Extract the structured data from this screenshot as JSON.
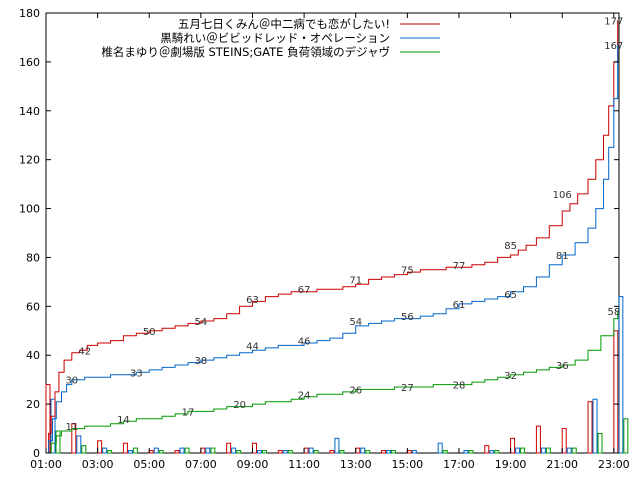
{
  "chart_data": {
    "type": "line",
    "x_label": "",
    "y_label": "",
    "y_ticks": [
      0,
      20,
      40,
      60,
      80,
      100,
      120,
      140,
      160,
      180
    ],
    "x_ticks": [
      "01:00",
      "03:00",
      "05:00",
      "07:00",
      "09:00",
      "11:00",
      "13:00",
      "15:00",
      "17:00",
      "19:00",
      "21:00",
      "23:00"
    ],
    "x_range_hours": [
      1,
      23.2
    ],
    "y_range": [
      0,
      180
    ],
    "grid": false,
    "legend_position": "top-right",
    "series": [
      {
        "name": "五月七日くみん＠中二病でも恋がしたい!",
        "color": "#cc0000",
        "cumulative": [
          [
            1.0,
            0
          ],
          [
            1.1,
            8
          ],
          [
            1.2,
            15
          ],
          [
            1.35,
            25
          ],
          [
            1.5,
            33
          ],
          [
            1.7,
            38
          ],
          [
            2.0,
            41
          ],
          [
            2.3,
            42
          ],
          [
            2.6,
            44
          ],
          [
            3.0,
            45
          ],
          [
            3.5,
            46
          ],
          [
            4.0,
            48
          ],
          [
            4.5,
            49
          ],
          [
            5.0,
            50
          ],
          [
            5.5,
            51
          ],
          [
            6.0,
            52
          ],
          [
            6.5,
            53
          ],
          [
            7.0,
            54
          ],
          [
            7.5,
            55
          ],
          [
            8.0,
            57
          ],
          [
            8.5,
            60
          ],
          [
            9.0,
            62
          ],
          [
            9.5,
            64
          ],
          [
            10.0,
            65
          ],
          [
            10.5,
            66
          ],
          [
            11.0,
            66
          ],
          [
            11.5,
            67
          ],
          [
            12.0,
            67
          ],
          [
            12.5,
            68
          ],
          [
            13.0,
            69
          ],
          [
            13.5,
            71
          ],
          [
            14.0,
            72
          ],
          [
            14.5,
            73
          ],
          [
            15.0,
            74
          ],
          [
            15.5,
            75
          ],
          [
            16.0,
            75
          ],
          [
            16.5,
            76
          ],
          [
            17.0,
            76
          ],
          [
            17.5,
            77
          ],
          [
            18.0,
            78
          ],
          [
            18.5,
            80
          ],
          [
            19.0,
            81
          ],
          [
            19.3,
            83
          ],
          [
            19.6,
            85
          ],
          [
            20.0,
            88
          ],
          [
            20.5,
            93
          ],
          [
            21.0,
            99
          ],
          [
            21.3,
            102
          ],
          [
            21.6,
            106
          ],
          [
            22.0,
            112
          ],
          [
            22.3,
            120
          ],
          [
            22.6,
            130
          ],
          [
            22.8,
            142
          ],
          [
            23.0,
            160
          ],
          [
            23.15,
            177
          ]
        ],
        "point_labels": [
          [
            2.5,
            42
          ],
          [
            5.0,
            50
          ],
          [
            7.0,
            54
          ],
          [
            9.0,
            63
          ],
          [
            11.0,
            67
          ],
          [
            13.0,
            71
          ],
          [
            15.0,
            75
          ],
          [
            17.0,
            77
          ],
          [
            19.0,
            85
          ],
          [
            21.0,
            106
          ],
          [
            23.0,
            177
          ]
        ],
        "hourly": [
          [
            1.0,
            28
          ],
          [
            2.0,
            12
          ],
          [
            3.0,
            5
          ],
          [
            4.0,
            4
          ],
          [
            5.0,
            1
          ],
          [
            6.0,
            1
          ],
          [
            7.0,
            2
          ],
          [
            8.0,
            4
          ],
          [
            9.0,
            4
          ],
          [
            10.0,
            1
          ],
          [
            11.0,
            2
          ],
          [
            12.0,
            1
          ],
          [
            13.0,
            2
          ],
          [
            14.0,
            1
          ],
          [
            15.0,
            1
          ],
          [
            16.0,
            0
          ],
          [
            17.0,
            0
          ],
          [
            18.0,
            3
          ],
          [
            19.0,
            6
          ],
          [
            20.0,
            11
          ],
          [
            21.0,
            10
          ],
          [
            22.0,
            21
          ],
          [
            23.0,
            50
          ]
        ]
      },
      {
        "name": "黒騎れい＠ビビッドレッド・オペレーション",
        "color": "#0066cc",
        "cumulative": [
          [
            1.0,
            0
          ],
          [
            1.1,
            5
          ],
          [
            1.25,
            14
          ],
          [
            1.4,
            21
          ],
          [
            1.6,
            25
          ],
          [
            1.8,
            28
          ],
          [
            2.0,
            30
          ],
          [
            2.5,
            31
          ],
          [
            3.0,
            31
          ],
          [
            3.5,
            32
          ],
          [
            4.0,
            32
          ],
          [
            4.5,
            33
          ],
          [
            5.0,
            34
          ],
          [
            5.5,
            35
          ],
          [
            6.0,
            36
          ],
          [
            6.5,
            37
          ],
          [
            7.0,
            38
          ],
          [
            7.5,
            39
          ],
          [
            8.0,
            40
          ],
          [
            8.5,
            41
          ],
          [
            9.0,
            42
          ],
          [
            9.5,
            43
          ],
          [
            10.0,
            44
          ],
          [
            10.5,
            44
          ],
          [
            11.0,
            45
          ],
          [
            11.5,
            46
          ],
          [
            12.0,
            47
          ],
          [
            12.5,
            49
          ],
          [
            13.0,
            52
          ],
          [
            13.5,
            53
          ],
          [
            14.0,
            54
          ],
          [
            14.5,
            55
          ],
          [
            15.0,
            55
          ],
          [
            15.5,
            56
          ],
          [
            16.0,
            57
          ],
          [
            16.5,
            59
          ],
          [
            17.0,
            61
          ],
          [
            17.5,
            62
          ],
          [
            18.0,
            63
          ],
          [
            18.5,
            64
          ],
          [
            19.0,
            66
          ],
          [
            19.5,
            68
          ],
          [
            20.0,
            72
          ],
          [
            20.5,
            77
          ],
          [
            21.0,
            81
          ],
          [
            21.5,
            86
          ],
          [
            22.0,
            92
          ],
          [
            22.3,
            100
          ],
          [
            22.6,
            112
          ],
          [
            22.8,
            125
          ],
          [
            23.0,
            145
          ],
          [
            23.15,
            167
          ]
        ],
        "point_labels": [
          [
            2.0,
            30
          ],
          [
            4.5,
            33
          ],
          [
            7.0,
            38
          ],
          [
            9.0,
            44
          ],
          [
            11.0,
            46
          ],
          [
            13.0,
            54
          ],
          [
            15.0,
            56
          ],
          [
            17.0,
            61
          ],
          [
            19.0,
            65
          ],
          [
            21.0,
            81
          ],
          [
            23.0,
            167
          ]
        ],
        "hourly": [
          [
            1.0,
            22
          ],
          [
            2.0,
            7
          ],
          [
            3.0,
            2
          ],
          [
            4.0,
            1
          ],
          [
            5.0,
            2
          ],
          [
            6.0,
            2
          ],
          [
            7.0,
            2
          ],
          [
            8.0,
            2
          ],
          [
            9.0,
            1
          ],
          [
            10.0,
            1
          ],
          [
            11.0,
            2
          ],
          [
            12.0,
            6
          ],
          [
            13.0,
            2
          ],
          [
            14.0,
            1
          ],
          [
            15.0,
            1
          ],
          [
            16.0,
            4
          ],
          [
            17.0,
            1
          ],
          [
            18.0,
            1
          ],
          [
            19.0,
            2
          ],
          [
            20.0,
            2
          ],
          [
            21.0,
            2
          ],
          [
            22.0,
            22
          ],
          [
            23.0,
            64
          ]
        ]
      },
      {
        "name": "椎名まゆり＠劇場版 STEINS;GATE 負荷領域のデジャヴ",
        "color": "#009900",
        "cumulative": [
          [
            1.0,
            0
          ],
          [
            1.2,
            4
          ],
          [
            1.4,
            7
          ],
          [
            1.6,
            9
          ],
          [
            2.0,
            10
          ],
          [
            2.5,
            11
          ],
          [
            3.0,
            11
          ],
          [
            3.5,
            12
          ],
          [
            4.0,
            13
          ],
          [
            4.5,
            14
          ],
          [
            5.0,
            14
          ],
          [
            5.5,
            15
          ],
          [
            6.0,
            16
          ],
          [
            6.5,
            17
          ],
          [
            7.0,
            17
          ],
          [
            7.5,
            18
          ],
          [
            8.0,
            19
          ],
          [
            8.5,
            19
          ],
          [
            9.0,
            20
          ],
          [
            9.5,
            21
          ],
          [
            10.0,
            21
          ],
          [
            10.5,
            22
          ],
          [
            11.0,
            23
          ],
          [
            11.5,
            24
          ],
          [
            12.0,
            24
          ],
          [
            12.5,
            25
          ],
          [
            13.0,
            26
          ],
          [
            13.5,
            26
          ],
          [
            14.0,
            26
          ],
          [
            14.5,
            27
          ],
          [
            15.0,
            27
          ],
          [
            15.5,
            27
          ],
          [
            16.0,
            28
          ],
          [
            16.5,
            28
          ],
          [
            17.0,
            28
          ],
          [
            17.5,
            29
          ],
          [
            18.0,
            30
          ],
          [
            18.5,
            31
          ],
          [
            19.0,
            32
          ],
          [
            19.5,
            33
          ],
          [
            20.0,
            34
          ],
          [
            20.5,
            35
          ],
          [
            21.0,
            36
          ],
          [
            21.5,
            38
          ],
          [
            22.0,
            42
          ],
          [
            22.5,
            48
          ],
          [
            23.0,
            55
          ],
          [
            23.15,
            58
          ]
        ],
        "point_labels": [
          [
            2.0,
            11
          ],
          [
            4.0,
            14
          ],
          [
            6.5,
            17
          ],
          [
            8.5,
            20
          ],
          [
            11.0,
            24
          ],
          [
            13.0,
            26
          ],
          [
            15.0,
            27
          ],
          [
            17.0,
            28
          ],
          [
            19.0,
            32
          ],
          [
            21.0,
            36
          ],
          [
            23.0,
            58
          ]
        ],
        "hourly": [
          [
            1.0,
            9
          ],
          [
            2.0,
            3
          ],
          [
            3.0,
            1
          ],
          [
            4.0,
            2
          ],
          [
            5.0,
            1
          ],
          [
            6.0,
            2
          ],
          [
            7.0,
            2
          ],
          [
            8.0,
            1
          ],
          [
            9.0,
            1
          ],
          [
            10.0,
            1
          ],
          [
            11.0,
            1
          ],
          [
            12.0,
            1
          ],
          [
            13.0,
            1
          ],
          [
            14.0,
            1
          ],
          [
            15.0,
            0
          ],
          [
            16.0,
            1
          ],
          [
            17.0,
            1
          ],
          [
            18.0,
            1
          ],
          [
            19.0,
            2
          ],
          [
            20.0,
            2
          ],
          [
            21.0,
            2
          ],
          [
            22.0,
            8
          ],
          [
            23.0,
            14
          ]
        ]
      }
    ]
  }
}
